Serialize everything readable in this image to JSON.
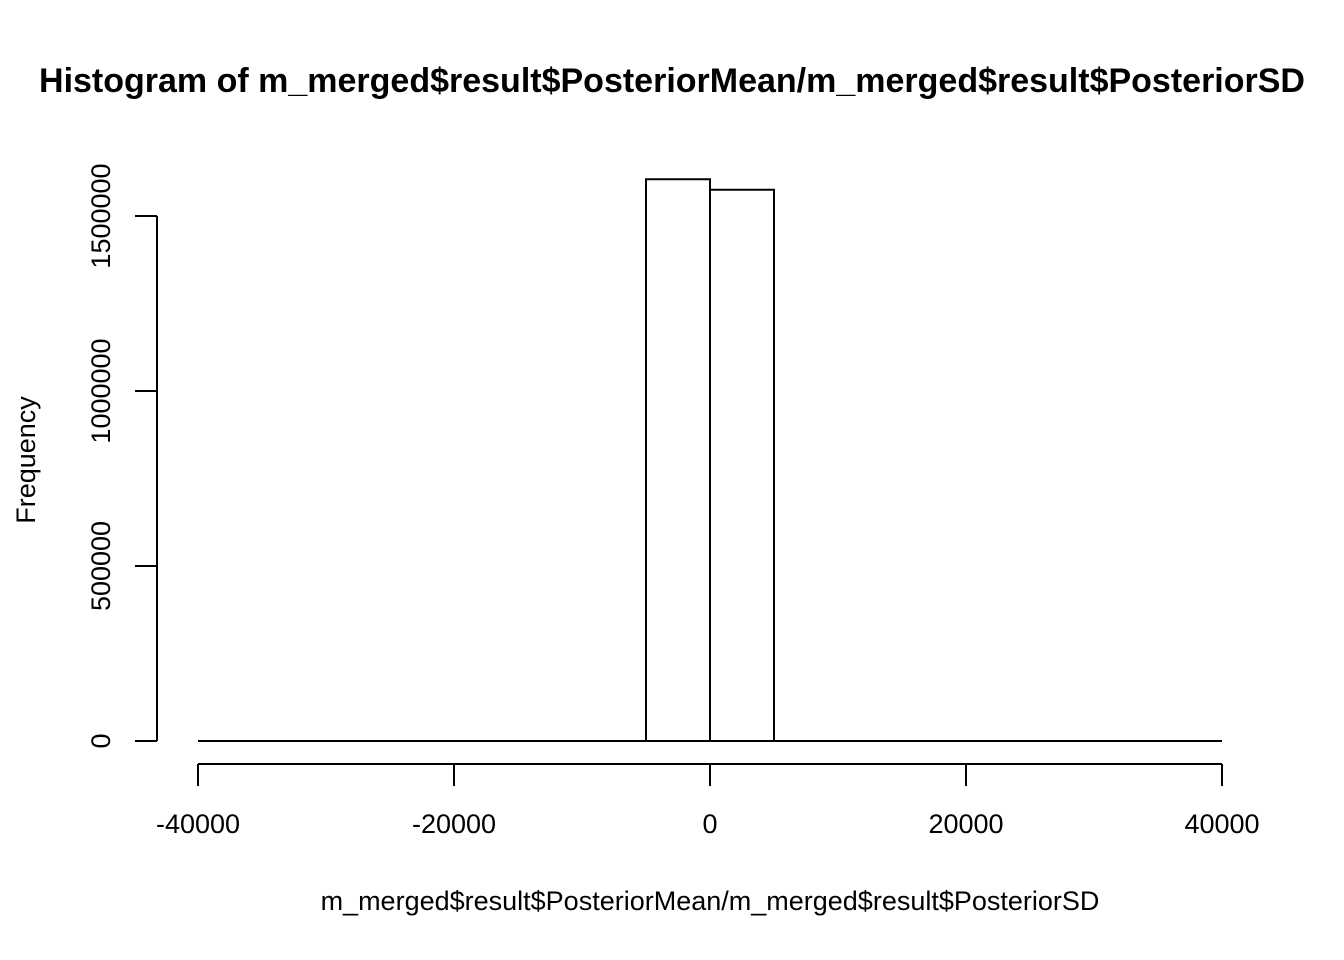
{
  "chart_data": {
    "type": "bar",
    "title": "Histogram of m_merged$result$PosteriorMean/m_merged$result$PosteriorSD",
    "xlabel": "m_merged$result$PosteriorMean/m_merged$result$PosteriorSD",
    "ylabel": "Frequency",
    "xlim": [
      -40000,
      40000
    ],
    "ylim": [
      0,
      1600000
    ],
    "bin_width": 5000,
    "bins": [
      {
        "start": -40000,
        "end": -35000,
        "count": 0
      },
      {
        "start": -35000,
        "end": -30000,
        "count": 0
      },
      {
        "start": -30000,
        "end": -25000,
        "count": 0
      },
      {
        "start": -25000,
        "end": -20000,
        "count": 0
      },
      {
        "start": -20000,
        "end": -15000,
        "count": 0
      },
      {
        "start": -15000,
        "end": -10000,
        "count": 0
      },
      {
        "start": -10000,
        "end": -5000,
        "count": 0
      },
      {
        "start": -5000,
        "end": 0,
        "count": 1605000
      },
      {
        "start": 0,
        "end": 5000,
        "count": 1575000
      },
      {
        "start": 5000,
        "end": 10000,
        "count": 0
      },
      {
        "start": 10000,
        "end": 15000,
        "count": 0
      },
      {
        "start": 15000,
        "end": 20000,
        "count": 0
      },
      {
        "start": 20000,
        "end": 25000,
        "count": 0
      },
      {
        "start": 25000,
        "end": 30000,
        "count": 0
      },
      {
        "start": 30000,
        "end": 35000,
        "count": 0
      },
      {
        "start": 35000,
        "end": 40000,
        "count": 0
      }
    ],
    "x_ticks": [
      -40000,
      -20000,
      0,
      20000,
      40000
    ],
    "x_tick_labels": [
      "-40000",
      "-20000",
      "0",
      "20000",
      "40000"
    ],
    "y_ticks": [
      0,
      500000,
      1000000,
      1500000
    ],
    "y_tick_labels": [
      "0",
      "500000",
      "1000000",
      "1500000"
    ],
    "grid": false,
    "legend": "none",
    "colors": {
      "bar_fill": "#ffffff",
      "bar_stroke": "#000000",
      "background": "#ffffff"
    }
  }
}
